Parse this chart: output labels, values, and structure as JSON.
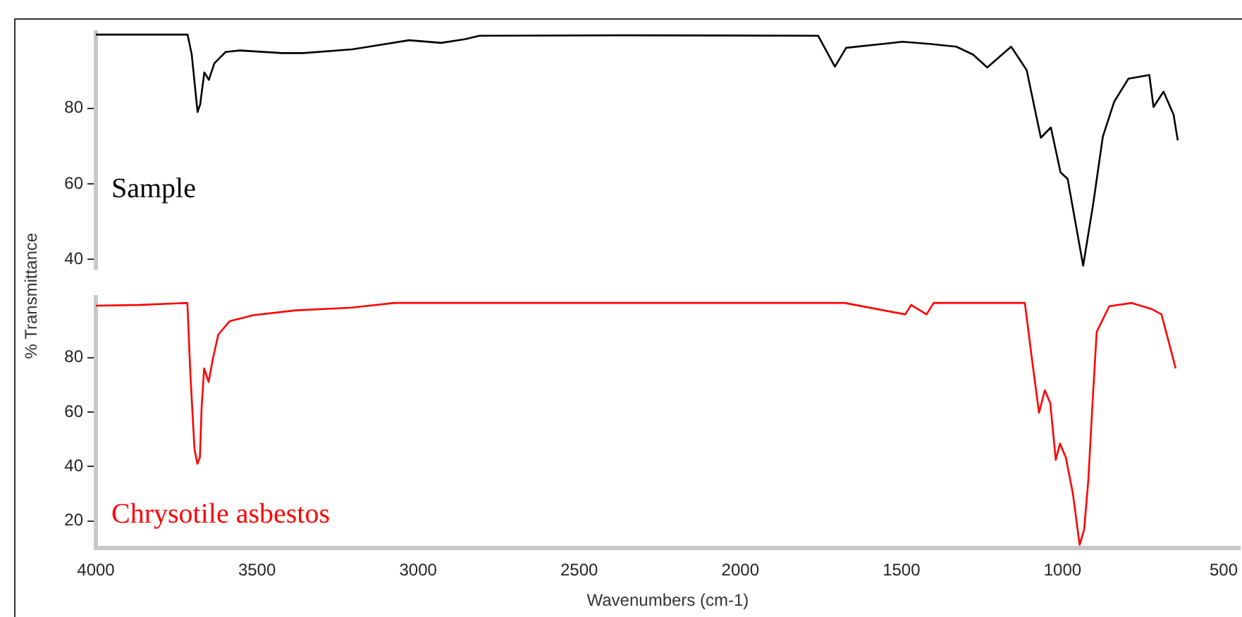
{
  "chart_data": [
    {
      "type": "line",
      "ylabel": "% Transmittance",
      "annotations": [
        "Sample"
      ],
      "xlim": [
        4000,
        450
      ],
      "xticks": [
        4000,
        3500,
        3000,
        2500,
        2000,
        1500,
        1000,
        500
      ],
      "ylim": [
        37.5,
        100
      ],
      "yticks": [
        40,
        60,
        80
      ],
      "tick_labels": "y",
      "grid": false,
      "legend": false,
      "series": [
        {
          "color": "#000000",
          "x": [
            4000,
            3716,
            3703,
            3685,
            3677,
            3664,
            3650,
            3633,
            3598,
            3554,
            3423,
            3358,
            3205,
            3030,
            2930,
            2855,
            2812,
            2375,
            1763,
            1711,
            1676,
            1501,
            1414,
            1335,
            1283,
            1239,
            1165,
            1117,
            1073,
            1042,
            1012,
            990,
            942,
            911,
            881,
            846,
            802,
            737,
            724,
            693,
            662,
            649
          ],
          "values": [
            99.5,
            99.5,
            94.2,
            79,
            81,
            89.5,
            87.5,
            91.9,
            94.9,
            95.3,
            94.6,
            94.6,
            95.6,
            98,
            97.3,
            98.3,
            99.2,
            99.3,
            99.2,
            91,
            96,
            97.6,
            97,
            96.3,
            94.2,
            90.8,
            96.3,
            90.1,
            72.2,
            74.9,
            63,
            61.3,
            38.3,
            54.6,
            72.5,
            81.7,
            87.8,
            88.8,
            80.3,
            84.4,
            78.3,
            71.5
          ]
        }
      ]
    },
    {
      "type": "line",
      "xlabel": "Wavenumbers (cm-1)",
      "annotations": [
        "Chrysotile asbestos"
      ],
      "xlim": [
        4000,
        450
      ],
      "xticks": [
        4000,
        3500,
        3000,
        2500,
        2000,
        1500,
        1000,
        500
      ],
      "ylim": [
        10,
        102
      ],
      "yticks": [
        20,
        40,
        60,
        80
      ],
      "grid": false,
      "legend": false,
      "series": [
        {
          "color": "#ff0000",
          "x": [
            4000,
            3860,
            3716,
            3707,
            3699,
            3694,
            3685,
            3677,
            3672,
            3664,
            3650,
            3637,
            3620,
            3585,
            3511,
            3380,
            3205,
            3074,
            1676,
            1488,
            1470,
            1422,
            1400,
            1117,
            1095,
            1073,
            1055,
            1038,
            1021,
            1008,
            990,
            968,
            947,
            933,
            920,
            907,
            894,
            855,
            785,
            724,
            693,
            671,
            649
          ],
          "values": [
            99,
            99.3,
            100,
            74.6,
            57.3,
            46.4,
            41,
            43.4,
            61.2,
            76,
            71,
            79.5,
            88.4,
            93.3,
            95.5,
            97.3,
            98.3,
            100,
            100,
            95.8,
            99.3,
            95.8,
            100,
            100,
            79.5,
            59.7,
            68,
            63.2,
            42.4,
            48.4,
            43.4,
            30.1,
            11.3,
            16.8,
            35,
            63.2,
            89.4,
            98.8,
            100,
            97.8,
            95.8,
            86,
            76
          ]
        }
      ]
    }
  ]
}
